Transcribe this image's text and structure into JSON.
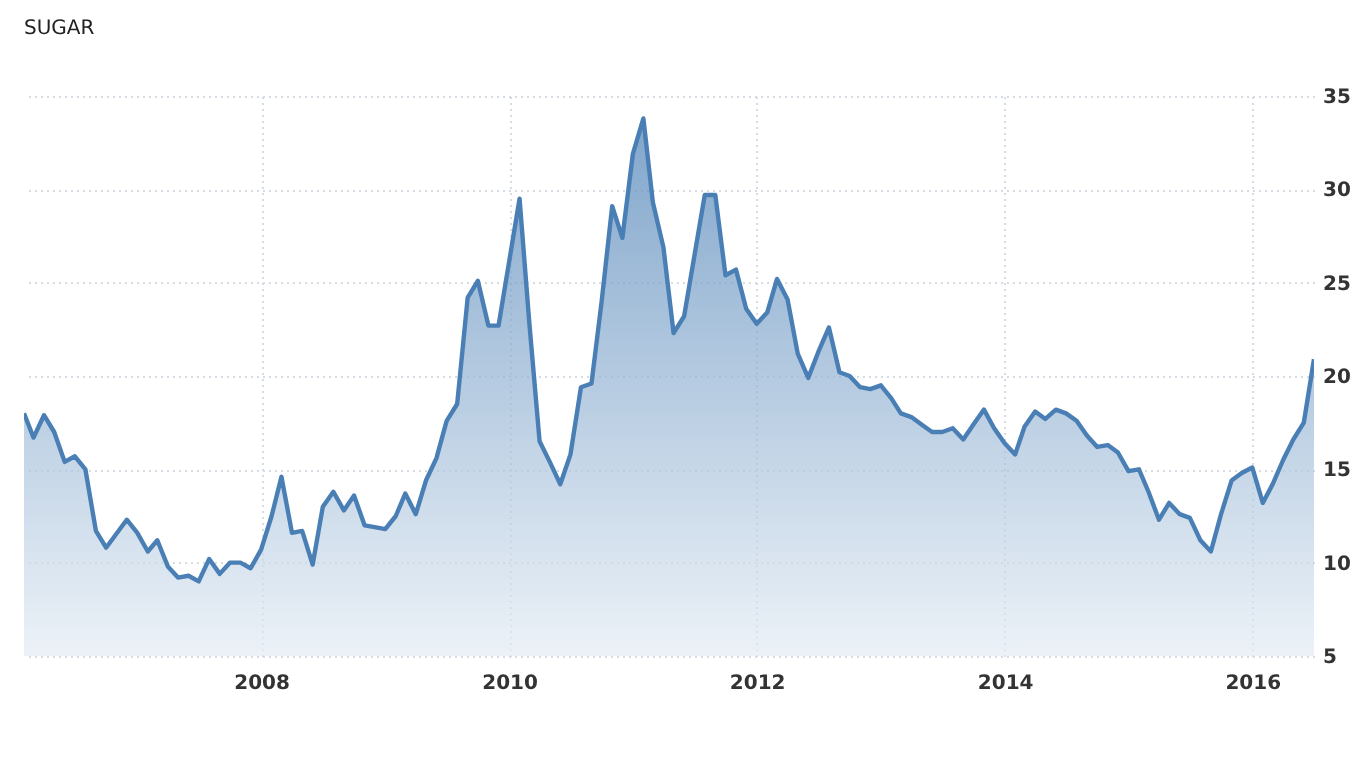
{
  "chart_data": {
    "type": "area",
    "title": "SUGAR",
    "x": [
      "2006-02",
      "2006-03",
      "2006-04",
      "2006-05",
      "2006-06",
      "2006-07",
      "2006-08",
      "2006-09",
      "2006-10",
      "2006-12",
      "2007-01",
      "2007-02",
      "2007-03",
      "2007-04",
      "2007-05",
      "2007-06",
      "2007-07",
      "2007-08",
      "2007-09",
      "2007-10",
      "2007-11",
      "2007-12",
      "2008-01",
      "2008-02",
      "2008-03",
      "2008-04",
      "2008-05",
      "2008-06",
      "2008-07",
      "2008-08",
      "2008-09",
      "2008-10",
      "2008-11",
      "2008-12",
      "2009-01",
      "2009-02",
      "2009-03",
      "2009-04",
      "2009-05",
      "2009-06",
      "2009-07",
      "2009-08",
      "2009-09",
      "2009-10",
      "2009-11",
      "2009-12",
      "2010-02",
      "2010-03",
      "2010-04",
      "2010-05",
      "2010-06",
      "2010-07",
      "2010-08",
      "2010-09",
      "2010-10",
      "2010-11",
      "2010-12",
      "2011-01",
      "2011-02",
      "2011-03",
      "2011-04",
      "2011-05",
      "2011-06",
      "2011-07",
      "2011-08",
      "2011-09",
      "2011-10",
      "2011-11",
      "2011-12",
      "2012-01",
      "2012-02",
      "2012-03",
      "2012-04",
      "2012-05",
      "2012-06",
      "2012-07",
      "2012-08",
      "2012-09",
      "2012-10",
      "2012-11",
      "2012-12",
      "2013-01",
      "2013-02",
      "2013-03",
      "2013-04",
      "2013-05",
      "2013-06",
      "2013-07",
      "2013-08",
      "2013-09",
      "2013-10",
      "2013-11",
      "2013-12",
      "2014-01",
      "2014-02",
      "2014-03",
      "2014-04",
      "2014-05",
      "2014-06",
      "2014-07",
      "2014-08",
      "2014-09",
      "2014-10",
      "2014-11",
      "2014-12",
      "2015-01",
      "2015-02",
      "2015-03",
      "2015-04",
      "2015-05",
      "2015-06",
      "2015-07",
      "2015-08",
      "2015-09",
      "2015-10",
      "2015-11",
      "2015-12",
      "2016-01",
      "2016-02",
      "2016-03",
      "2016-04",
      "2016-05",
      "2016-06",
      "2016-07"
    ],
    "series": [
      {
        "color": "#4a7fb5",
        "values": [
          18.0,
          16.7,
          17.9,
          17.0,
          15.4,
          15.7,
          15.0,
          11.7,
          10.8,
          12.3,
          11.6,
          10.6,
          11.2,
          9.8,
          9.2,
          9.3,
          9.0,
          10.2,
          9.4,
          10.0,
          10.0,
          9.7,
          10.7,
          12.5,
          14.6,
          11.6,
          11.7,
          9.9,
          13.0,
          13.8,
          12.8,
          13.6,
          12.0,
          11.9,
          11.8,
          12.5,
          13.7,
          12.6,
          14.4,
          15.6,
          17.6,
          18.5,
          24.2,
          25.1,
          22.7,
          22.7,
          29.5,
          23.0,
          16.5,
          15.4,
          14.2,
          15.8,
          19.4,
          19.6,
          24.0,
          29.1,
          27.4,
          31.9,
          33.8,
          29.3,
          26.9,
          22.3,
          23.2,
          26.4,
          29.7,
          29.7,
          25.4,
          25.7,
          23.6,
          22.8,
          23.4,
          25.2,
          24.1,
          21.2,
          19.9,
          21.3,
          22.6,
          20.2,
          20.0,
          19.4,
          19.3,
          19.5,
          18.8,
          18.0,
          17.8,
          17.4,
          17.0,
          17.0,
          17.2,
          16.6,
          17.4,
          18.2,
          17.2,
          16.4,
          15.8,
          17.3,
          18.1,
          17.7,
          18.2,
          18.0,
          17.6,
          16.8,
          16.2,
          16.3,
          15.9,
          14.9,
          15.0,
          13.8,
          12.3,
          13.2,
          12.6,
          12.4,
          11.2,
          10.6,
          12.6,
          14.4,
          14.8,
          15.1,
          13.2,
          14.2,
          15.5,
          16.6,
          17.5,
          20.9
        ]
      }
    ],
    "xlim": [
      "2006-02",
      "2016-07"
    ],
    "xticks": [
      "2008",
      "2010",
      "2012",
      "2014",
      "2016"
    ],
    "ylim": [
      5,
      35
    ],
    "yticks": [
      5,
      10,
      15,
      20,
      25,
      30,
      35
    ],
    "grid": true,
    "marker": "none",
    "line_style": "solid"
  }
}
